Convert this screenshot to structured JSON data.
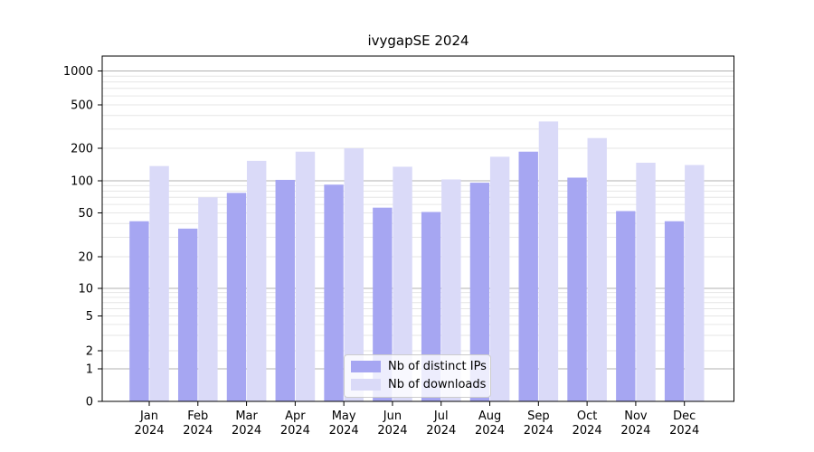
{
  "chart_data": {
    "type": "bar",
    "title": "ivygapSE 2024",
    "categories": [
      "Jan",
      "Feb",
      "Mar",
      "Apr",
      "May",
      "Jun",
      "Jul",
      "Aug",
      "Sep",
      "Oct",
      "Nov",
      "Dec"
    ],
    "category_year": "2024",
    "series": [
      {
        "name": "Nb of distinct IPs",
        "color": "#a6a6f2",
        "values": [
          42,
          36,
          77,
          102,
          92,
          56,
          51,
          96,
          186,
          107,
          52,
          42
        ]
      },
      {
        "name": "Nb of downloads",
        "color": "#dadaf8",
        "values": [
          137,
          70,
          153,
          186,
          200,
          135,
          103,
          167,
          352,
          248,
          147,
          140
        ]
      }
    ],
    "y_ticks": [
      1000,
      500,
      200,
      100,
      50,
      20,
      10,
      5,
      2,
      1,
      0
    ],
    "y_scale": "symlog",
    "ylim": [
      0,
      1300
    ],
    "grid": true,
    "legend_position": "lower center",
    "colors": {
      "major_grid": "#b0b0b0",
      "minor_grid": "#e6e6e6",
      "axis": "#000000",
      "text": "#000000"
    }
  }
}
